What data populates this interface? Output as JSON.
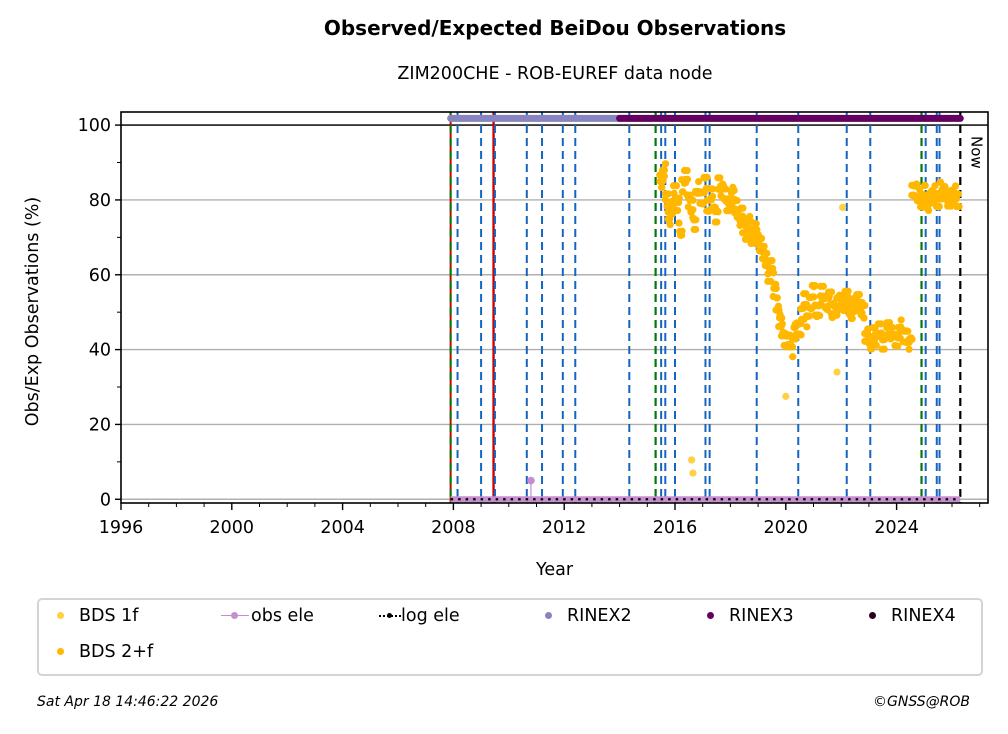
{
  "chart_data": {
    "type": "scatter",
    "title": "Observed/Expected BeiDou Observations",
    "subtitle": "ZIM200CHE - ROB-EUREF data node",
    "xlabel": "Year",
    "ylabel": "Obs/Exp Observations (%)",
    "xlim": [
      1996,
      2027.3
    ],
    "ylim": [
      -1,
      103.5
    ],
    "xticks": [
      1996,
      2000,
      2004,
      2008,
      2012,
      2016,
      2020,
      2024
    ],
    "yticks": [
      0,
      20,
      40,
      60,
      80,
      100
    ],
    "grid": "y",
    "now_label": "Now",
    "now_year": 2026.3,
    "legend_position": "bottom",
    "colors": {
      "bds1f": "#ffd040",
      "bds2f": "#ffb700",
      "obs_ele": "#c58fcf",
      "log_ele": "#000000",
      "rinex2": "#8884c0",
      "rinex3": "#650063",
      "rinex4": "#2a0022",
      "event_blue": "#1565c0",
      "event_green": "#007a0a",
      "event_red": "#d40000",
      "grid": "#b0b0b0"
    },
    "legend": [
      {
        "key": "bds1f",
        "label": "BDS 1f"
      },
      {
        "key": "obs_ele",
        "label": "obs ele"
      },
      {
        "key": "log_ele",
        "label": "log ele"
      },
      {
        "key": "rinex2",
        "label": "RINEX2"
      },
      {
        "key": "rinex3",
        "label": "RINEX3"
      },
      {
        "key": "rinex4",
        "label": "RINEX4"
      },
      {
        "key": "bds2f",
        "label": "BDS 2+f"
      }
    ],
    "rinex_bars": [
      {
        "name": "RINEX2",
        "start": 2007.9,
        "end": 2014.0,
        "y": 101.8,
        "key": "rinex2"
      },
      {
        "name": "RINEX3",
        "start": 2014.0,
        "end": 2026.3,
        "y": 101.8,
        "key": "rinex3"
      }
    ],
    "obs_ele": {
      "start": 2007.9,
      "end": 2026.3,
      "y": 0,
      "spike_year": 2010.8,
      "spike_value": 5
    },
    "log_ele": {
      "start": 2007.9,
      "end": 2026.3,
      "y": 0
    },
    "event_lines": [
      {
        "year": 2007.9,
        "style": "green-red"
      },
      {
        "year": 2008.15,
        "style": "blue"
      },
      {
        "year": 2009.0,
        "style": "blue"
      },
      {
        "year": 2009.45,
        "style": "red"
      },
      {
        "year": 2009.5,
        "style": "blue"
      },
      {
        "year": 2010.65,
        "style": "blue"
      },
      {
        "year": 2011.2,
        "style": "blue"
      },
      {
        "year": 2011.95,
        "style": "blue"
      },
      {
        "year": 2012.4,
        "style": "blue"
      },
      {
        "year": 2014.35,
        "style": "blue"
      },
      {
        "year": 2015.3,
        "style": "green"
      },
      {
        "year": 2015.5,
        "style": "blue"
      },
      {
        "year": 2015.65,
        "style": "blue"
      },
      {
        "year": 2016.0,
        "style": "blue"
      },
      {
        "year": 2017.1,
        "style": "blue"
      },
      {
        "year": 2017.25,
        "style": "blue"
      },
      {
        "year": 2018.95,
        "style": "blue"
      },
      {
        "year": 2020.45,
        "style": "blue"
      },
      {
        "year": 2022.2,
        "style": "blue"
      },
      {
        "year": 2023.05,
        "style": "blue"
      },
      {
        "year": 2024.9,
        "style": "green"
      },
      {
        "year": 2025.05,
        "style": "blue"
      },
      {
        "year": 2025.45,
        "style": "blue"
      },
      {
        "year": 2025.55,
        "style": "blue"
      },
      {
        "year": 2026.3,
        "style": "black"
      }
    ],
    "series": [
      {
        "name": "BDS 2+f",
        "key": "bds2f",
        "x": [
          2015.5,
          2015.6,
          2015.7,
          2015.8,
          2015.9,
          2016.0,
          2016.1,
          2016.2,
          2016.3,
          2016.4,
          2016.5,
          2016.6,
          2016.7,
          2016.8,
          2016.9,
          2017.0,
          2017.1,
          2017.2,
          2017.3,
          2017.4,
          2017.5,
          2017.6,
          2017.7,
          2017.8,
          2017.9,
          2018.0,
          2018.1,
          2018.2,
          2018.3,
          2018.4,
          2018.5,
          2018.6,
          2018.7,
          2018.8,
          2018.9,
          2019.0,
          2019.1,
          2019.2,
          2019.3,
          2019.4,
          2019.5,
          2019.6,
          2019.7,
          2019.8,
          2019.9,
          2020.0,
          2020.1,
          2020.2,
          2020.3,
          2020.4,
          2020.5,
          2020.6,
          2020.7,
          2020.8,
          2020.9,
          2021.0,
          2021.1,
          2021.2,
          2021.3,
          2021.4,
          2021.5,
          2021.6,
          2021.7,
          2021.8,
          2021.9,
          2022.0,
          2022.1,
          2022.2,
          2022.3,
          2022.4,
          2022.5,
          2022.6,
          2022.7,
          2022.8,
          2022.9,
          2023.0,
          2023.1,
          2023.2,
          2023.3,
          2023.4,
          2023.5,
          2023.6,
          2023.7,
          2023.8,
          2023.9,
          2024.0,
          2024.1,
          2024.2,
          2024.3,
          2024.4,
          2024.5,
          2024.6,
          2024.7,
          2024.8,
          2024.9,
          2025.0,
          2025.1,
          2025.2,
          2025.3,
          2025.4,
          2025.5,
          2025.6,
          2025.7,
          2025.8,
          2025.9,
          2026.0,
          2026.1,
          2026.2
        ],
        "y": [
          85,
          88,
          80,
          75,
          78,
          82,
          79,
          72,
          84,
          86,
          80,
          78,
          74,
          83,
          81,
          80,
          85,
          78,
          82,
          79,
          76,
          84,
          83,
          81,
          79,
          80,
          82,
          78,
          75,
          76,
          73,
          71,
          74,
          70,
          72,
          69,
          68,
          66,
          64,
          60,
          62,
          56,
          52,
          48,
          45,
          43,
          42,
          40,
          44,
          46,
          45,
          50,
          53,
          48,
          52,
          56,
          50,
          51,
          55,
          53,
          52,
          54,
          50,
          51,
          52,
          53,
          52,
          54,
          51,
          50,
          52,
          53,
          51,
          50,
          44,
          43,
          42,
          44,
          43,
          45,
          42,
          44,
          46,
          44,
          43,
          42,
          45,
          46,
          44,
          43,
          42,
          82,
          83,
          81,
          80,
          82,
          79,
          80,
          81,
          82,
          80,
          83,
          82,
          81,
          80,
          81,
          82,
          80
        ]
      },
      {
        "name": "BDS 1f",
        "key": "bds1f",
        "x": [
          2016.6,
          2016.65,
          2020.0,
          2021.85,
          2022.05
        ],
        "y": [
          10.5,
          7,
          27.5,
          34,
          78
        ]
      }
    ]
  },
  "footer": {
    "timestamp": "Sat Apr 18 14:46:22 2026",
    "credit": "©GNSS@ROB"
  }
}
